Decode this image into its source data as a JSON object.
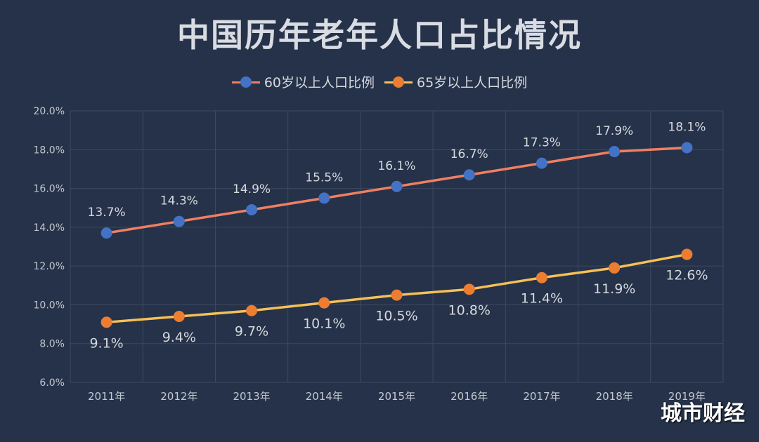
{
  "chart_data": {
    "type": "line",
    "title": "中国历年老年人口占比情况",
    "categories": [
      "2011年",
      "2012年",
      "2013年",
      "2014年",
      "2015年",
      "2016年",
      "2017年",
      "2018年",
      "2019年"
    ],
    "series": [
      {
        "name": "60岁以上人口比例",
        "values": [
          13.7,
          14.3,
          14.9,
          15.5,
          16.1,
          16.7,
          17.3,
          17.9,
          18.1
        ],
        "labels": [
          "13.7%",
          "14.3%",
          "14.9%",
          "15.5%",
          "16.1%",
          "16.7%",
          "17.3%",
          "17.9%",
          "18.1%"
        ],
        "line_color": "#f07f61",
        "marker_color": "#4472c4",
        "label_position": "above"
      },
      {
        "name": "65岁以上人口比例",
        "values": [
          9.1,
          9.4,
          9.7,
          10.1,
          10.5,
          10.8,
          11.4,
          11.9,
          12.6
        ],
        "labels": [
          "9.1%",
          "9.4%",
          "9.7%",
          "10.1%",
          "10.5%",
          "10.8%",
          "11.4%",
          "11.9%",
          "12.6%"
        ],
        "line_color": "#f5c056",
        "marker_color": "#ed7d31",
        "label_position": "below"
      }
    ],
    "ylim": [
      6,
      20
    ],
    "yticks": [
      "6.0%",
      "8.0%",
      "10.0%",
      "12.0%",
      "14.0%",
      "16.0%",
      "18.0%",
      "20.0%"
    ],
    "grid": true,
    "legend": "top"
  },
  "watermark": "城市财经"
}
